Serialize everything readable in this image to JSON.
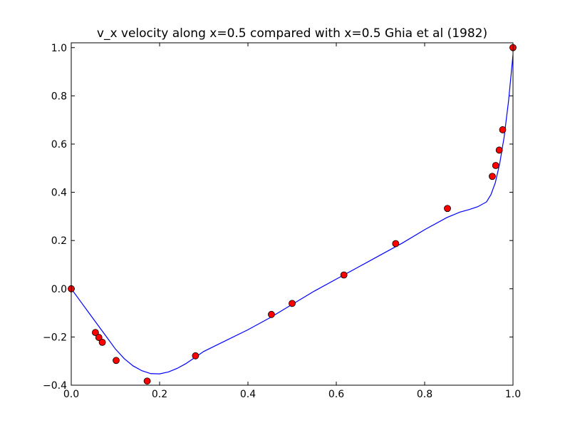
{
  "chart_data": {
    "type": "line",
    "title": "v_x velocity along x=0.5 compared with x=0.5 Ghia et al (1982)",
    "xlabel": "",
    "ylabel": "",
    "xlim": [
      0.0,
      1.0
    ],
    "ylim": [
      -0.4,
      1.02
    ],
    "x_ticks": [
      "0.0",
      "0.2",
      "0.4",
      "0.6",
      "0.8",
      "1.0"
    ],
    "y_ticks": [
      "−0.4",
      "−0.2",
      "0.0",
      "0.2",
      "0.4",
      "0.6",
      "0.8",
      "1.0"
    ],
    "grid": false,
    "legend": "none",
    "series": [
      {
        "kind": "line",
        "color": "#0000ff",
        "x": [
          0.0,
          0.02,
          0.04,
          0.06,
          0.08,
          0.1,
          0.12,
          0.14,
          0.16,
          0.18,
          0.2,
          0.22,
          0.24,
          0.26,
          0.28,
          0.3,
          0.35,
          0.4,
          0.45,
          0.5,
          0.55,
          0.6,
          0.65,
          0.7,
          0.75,
          0.8,
          0.85,
          0.88,
          0.9,
          0.92,
          0.94,
          0.95,
          0.96,
          0.97,
          0.98,
          0.99,
          1.0
        ],
        "y": [
          0.0,
          -0.05,
          -0.1,
          -0.15,
          -0.2,
          -0.25,
          -0.29,
          -0.32,
          -0.34,
          -0.352,
          -0.353,
          -0.345,
          -0.33,
          -0.31,
          -0.285,
          -0.26,
          -0.215,
          -0.17,
          -0.12,
          -0.065,
          -0.01,
          0.04,
          0.09,
          0.14,
          0.19,
          0.245,
          0.295,
          0.318,
          0.328,
          0.34,
          0.36,
          0.39,
          0.44,
          0.52,
          0.63,
          0.78,
          0.97
        ]
      },
      {
        "kind": "scatter",
        "color": "#ff0000",
        "x": [
          0.0,
          0.0547,
          0.0625,
          0.0703,
          0.1016,
          0.1719,
          0.2813,
          0.4531,
          0.5,
          0.6172,
          0.7344,
          0.8516,
          0.9531,
          0.9609,
          0.9688,
          0.9766,
          1.0
        ],
        "y": [
          0.0,
          -0.1815,
          -0.202,
          -0.2222,
          -0.2973,
          -0.3829,
          -0.2781,
          -0.1065,
          -0.0608,
          0.057,
          0.1872,
          0.333,
          0.466,
          0.5112,
          0.5749,
          0.6593,
          1.0
        ]
      }
    ]
  }
}
